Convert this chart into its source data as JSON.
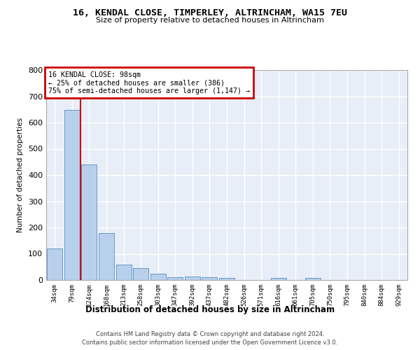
{
  "title1": "16, KENDAL CLOSE, TIMPERLEY, ALTRINCHAM, WA15 7EU",
  "title2": "Size of property relative to detached houses in Altrincham",
  "xlabel": "Distribution of detached houses by size in Altrincham",
  "ylabel": "Number of detached properties",
  "bar_labels": [
    "34sqm",
    "79sqm",
    "124sqm",
    "168sqm",
    "213sqm",
    "258sqm",
    "303sqm",
    "347sqm",
    "392sqm",
    "437sqm",
    "482sqm",
    "526sqm",
    "571sqm",
    "616sqm",
    "661sqm",
    "705sqm",
    "750sqm",
    "795sqm",
    "840sqm",
    "884sqm",
    "929sqm"
  ],
  "bar_values": [
    120,
    648,
    440,
    178,
    60,
    45,
    23,
    12,
    13,
    12,
    8,
    0,
    0,
    7,
    0,
    7,
    0,
    0,
    0,
    0,
    0
  ],
  "bar_color": "#b8d0eb",
  "bar_edge_color": "#6699cc",
  "annotation_box_edge_color": "#cc0000",
  "annotation_line1": "16 KENDAL CLOSE: 98sqm",
  "annotation_line2": "← 25% of detached houses are smaller (386)",
  "annotation_line3": "75% of semi-detached houses are larger (1,147) →",
  "vline_color": "#cc0000",
  "bg_color": "#e8eef8",
  "grid_color": "#ffffff",
  "footer1": "Contains HM Land Registry data © Crown copyright and database right 2024.",
  "footer2": "Contains public sector information licensed under the Open Government Licence v3.0.",
  "ylim_max": 800,
  "yticks": [
    0,
    100,
    200,
    300,
    400,
    500,
    600,
    700,
    800
  ]
}
